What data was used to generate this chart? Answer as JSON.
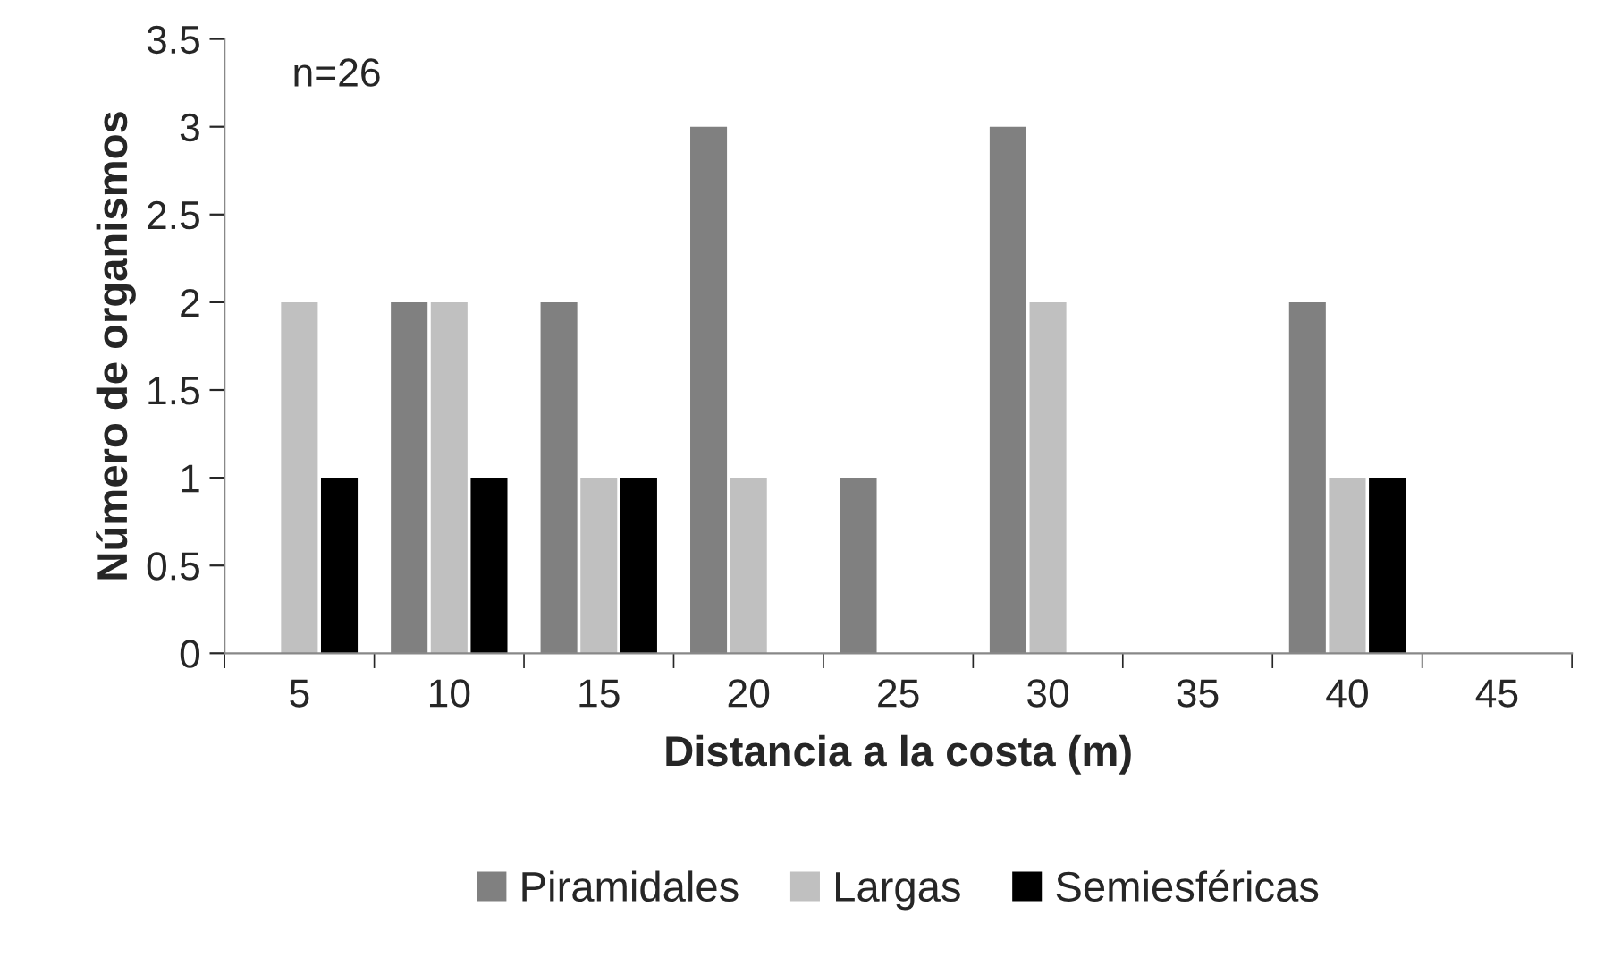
{
  "chart_data": {
    "type": "bar",
    "xlabel": "Distancia a la costa (m)",
    "ylabel": "Número de organismos",
    "categories": [
      "5",
      "10",
      "15",
      "20",
      "25",
      "30",
      "35",
      "40",
      "45"
    ],
    "series": [
      {
        "name": "Piramidales",
        "color": "#808080",
        "values": [
          0,
          2,
          2,
          3,
          1,
          3,
          0,
          2,
          0
        ]
      },
      {
        "name": "Largas",
        "color": "#c0c0c0",
        "values": [
          2,
          2,
          1,
          1,
          0,
          2,
          0,
          1,
          0
        ]
      },
      {
        "name": "Semiesféricas",
        "color": "#000000",
        "values": [
          1,
          1,
          1,
          0,
          0,
          0,
          0,
          1,
          0
        ]
      }
    ],
    "ylim": [
      0,
      3.5
    ],
    "yticks": [
      0,
      0.5,
      1,
      1.5,
      2,
      2.5,
      3,
      3.5
    ],
    "grid": false,
    "legend": "bottom",
    "annotations": [
      "n=26"
    ]
  }
}
